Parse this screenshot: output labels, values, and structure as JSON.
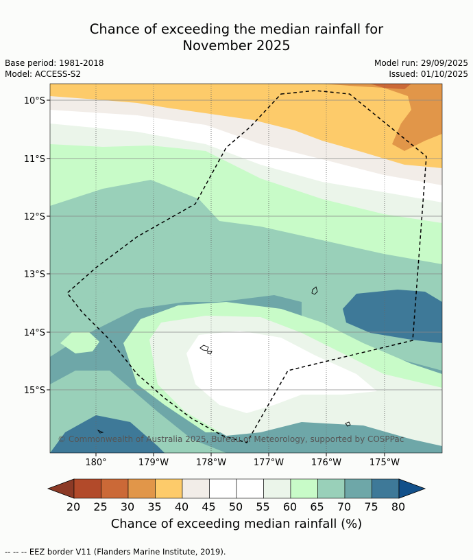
{
  "title": {
    "line1": "Chance of exceeding the median rainfall for",
    "line2": "November 2025"
  },
  "info": {
    "base_period": "Base period: 1981-2018",
    "model": "Model: ACCESS-S2",
    "model_run": "Model run: 29/09/2025",
    "issued": "Issued: 01/10/2025"
  },
  "map": {
    "lat_labels": [
      "10°S",
      "11°S",
      "12°S",
      "13°S",
      "14°S",
      "15°S"
    ],
    "lon_labels": [
      "180°",
      "179°W",
      "178°W",
      "177°W",
      "176°W",
      "175°W"
    ],
    "copyright": "© Commonwealth of Australia 2025, Bureau of Meteorology, supported by COSPPac"
  },
  "colorbar": {
    "title": "Chance of exceeding median rainfall (%)",
    "ticks": [
      "20",
      "25",
      "30",
      "35",
      "40",
      "45",
      "50",
      "55",
      "60",
      "65",
      "70",
      "75",
      "80"
    ],
    "colors": [
      "#b24a2a",
      "#cb6937",
      "#e19649",
      "#fdcb6a",
      "#f2ede8",
      "#ffffff",
      "#ffffff",
      "#ebf5ea",
      "#c8fbc8",
      "#99d0b9",
      "#6ea7a8",
      "#3e7998"
    ],
    "under_color": "#8c3a26",
    "over_color": "#12508a"
  },
  "legend": {
    "text": "--  --  -- EEZ border V11 (Flanders Marine Institute, 2019)."
  }
}
